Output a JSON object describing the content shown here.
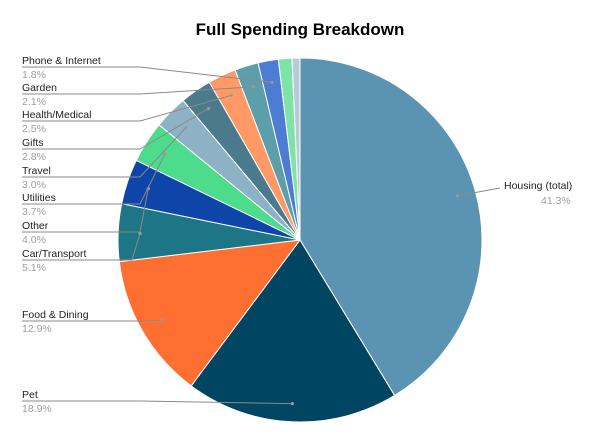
{
  "chart_data": {
    "type": "pie",
    "title": "Full Spending Breakdown",
    "slices": [
      {
        "label": "Housing (total)",
        "value": 41.3,
        "pct_label": "41.3%",
        "color": "#5b94b3"
      },
      {
        "label": "Pet",
        "value": 18.9,
        "pct_label": "18.9%",
        "color": "#004561"
      },
      {
        "label": "Food & Dining",
        "value": 12.9,
        "pct_label": "12.9%",
        "color": "#ff6f31"
      },
      {
        "label": "Car/Transport",
        "value": 5.1,
        "pct_label": "5.1%",
        "color": "#1c7685"
      },
      {
        "label": "Other",
        "value": 4.0,
        "pct_label": "4.0%",
        "color": "#0f45a8"
      },
      {
        "label": "Utilities",
        "value": 3.7,
        "pct_label": "3.7%",
        "color": "#4cdc8b"
      },
      {
        "label": "Travel",
        "value": 3.0,
        "pct_label": "3.0%",
        "color": "#8db2c6"
      },
      {
        "label": "Gifts",
        "value": 2.8,
        "pct_label": "2.8%",
        "color": "#4a7a8c"
      },
      {
        "label": "Health/Medical",
        "value": 2.5,
        "pct_label": "2.5%",
        "color": "#ff9a66"
      },
      {
        "label": "Garden",
        "value": 2.1,
        "pct_label": "2.1%",
        "color": "#5c9eaa"
      },
      {
        "label": "Phone & Internet",
        "value": 1.8,
        "pct_label": "1.8%",
        "color": "#4c7dd2"
      },
      {
        "label": "",
        "value": 1.2,
        "pct_label": "",
        "color": "#7fe3a8"
      },
      {
        "label": "",
        "value": 0.7,
        "pct_label": "",
        "color": "#b8ccd8"
      }
    ]
  }
}
